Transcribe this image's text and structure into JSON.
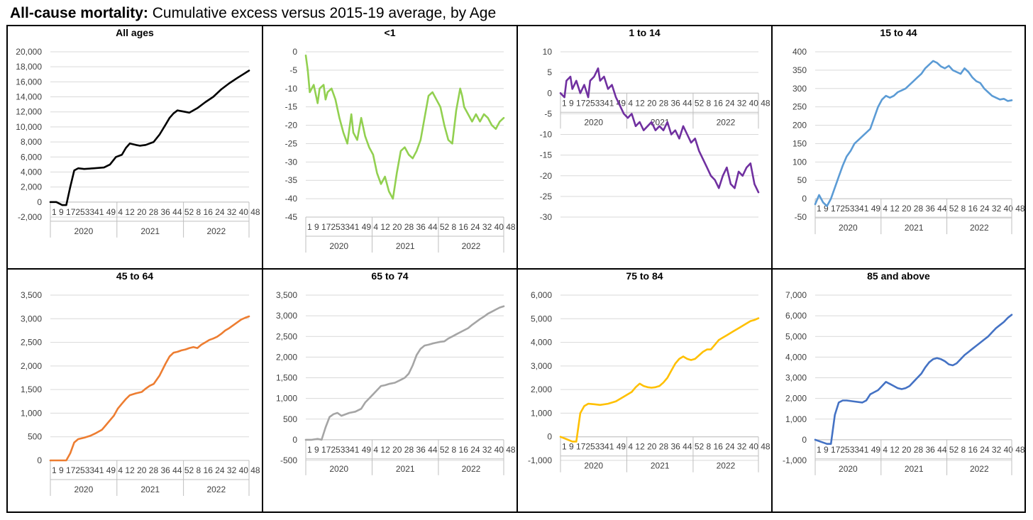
{
  "page": {
    "title_bold": "All-cause mortality:",
    "title_rest": " Cumulative excess versus 2015-19 average, by Age"
  },
  "chart_data": [
    {
      "type": "line",
      "title": "All ages",
      "color": "#000000",
      "ylim": [
        -2000,
        20000
      ],
      "yticks": [
        -2000,
        0,
        2000,
        4000,
        6000,
        8000,
        10000,
        12000,
        14000,
        16000,
        18000,
        20000
      ],
      "week_labels": "1  9  17253341 49  4  12 20 28 36 44 52  8  16 24 32 40 48",
      "years": [
        "2020",
        "2021",
        "2022"
      ],
      "series": [
        {
          "x": [
            0,
            0.03,
            0.06,
            0.08,
            0.1,
            0.12,
            0.14,
            0.17,
            0.22,
            0.27,
            0.3,
            0.33,
            0.36,
            0.38,
            0.4,
            0.43,
            0.45,
            0.48,
            0.52,
            0.55,
            0.58,
            0.6,
            0.62,
            0.64,
            0.66,
            0.7,
            0.74,
            0.78,
            0.82,
            0.86,
            0.9,
            0.94,
            0.97,
            1.0
          ],
          "y": [
            0,
            0,
            -400,
            -400,
            2000,
            4200,
            4500,
            4400,
            4500,
            4600,
            5000,
            6000,
            6300,
            7200,
            7800,
            7600,
            7500,
            7600,
            8000,
            9000,
            10300,
            11200,
            11800,
            12200,
            12100,
            11900,
            12500,
            13300,
            14000,
            15000,
            15800,
            16500,
            17000,
            17500
          ]
        }
      ]
    },
    {
      "type": "line",
      "title": "<1",
      "color": "#92d050",
      "ylim": [
        -45,
        0
      ],
      "yticks": [
        -45,
        -40,
        -35,
        -30,
        -25,
        -20,
        -15,
        -10,
        -5,
        0
      ],
      "week_labels": "1  9  17253341 49  4  12 20 28 36 44 52  8  16 24 32 40 48",
      "years": [
        "2020",
        "2021",
        "2022"
      ],
      "series": [
        {
          "x": [
            0,
            0.01,
            0.02,
            0.04,
            0.06,
            0.07,
            0.09,
            0.1,
            0.11,
            0.13,
            0.15,
            0.17,
            0.19,
            0.21,
            0.23,
            0.24,
            0.26,
            0.28,
            0.3,
            0.32,
            0.34,
            0.36,
            0.38,
            0.4,
            0.42,
            0.44,
            0.46,
            0.48,
            0.5,
            0.52,
            0.54,
            0.56,
            0.58,
            0.6,
            0.62,
            0.64,
            0.66,
            0.68,
            0.7,
            0.72,
            0.74,
            0.76,
            0.78,
            0.79,
            0.8,
            0.82,
            0.84,
            0.86,
            0.88,
            0.9,
            0.92,
            0.94,
            0.96,
            0.98,
            1.0
          ],
          "y": [
            -1,
            -5,
            -11,
            -9,
            -14,
            -10,
            -9,
            -13,
            -11,
            -10,
            -13,
            -18,
            -22,
            -25,
            -17,
            -22,
            -24,
            -18,
            -23,
            -26,
            -28,
            -33,
            -36,
            -34,
            -38,
            -40,
            -33,
            -27,
            -26,
            -28,
            -29,
            -27,
            -24,
            -18,
            -12,
            -11,
            -13,
            -15,
            -20,
            -24,
            -25,
            -16,
            -10,
            -12,
            -15,
            -17,
            -19,
            -17,
            -19,
            -17,
            -18,
            -20,
            -21,
            -19,
            -18
          ]
        }
      ]
    },
    {
      "type": "line",
      "title": "1 to 14",
      "color": "#7030a0",
      "ylim": [
        -30,
        10
      ],
      "yticks": [
        -30,
        -25,
        -20,
        -15,
        -10,
        -5,
        0,
        5,
        10
      ],
      "week_labels": "1  9  17253341 49  4  12 20 28 36 44 52  8  16 24 32 40 48",
      "years": [
        "2020",
        "2021",
        "2022"
      ],
      "series": [
        {
          "x": [
            0,
            0.02,
            0.03,
            0.05,
            0.06,
            0.08,
            0.1,
            0.12,
            0.14,
            0.15,
            0.17,
            0.19,
            0.2,
            0.22,
            0.24,
            0.26,
            0.28,
            0.3,
            0.32,
            0.34,
            0.36,
            0.38,
            0.4,
            0.42,
            0.44,
            0.46,
            0.48,
            0.5,
            0.52,
            0.54,
            0.56,
            0.58,
            0.6,
            0.62,
            0.64,
            0.66,
            0.68,
            0.7,
            0.72,
            0.74,
            0.76,
            0.78,
            0.8,
            0.82,
            0.84,
            0.86,
            0.88,
            0.9,
            0.92,
            0.94,
            0.96,
            0.98,
            1.0
          ],
          "y": [
            0,
            -1,
            3,
            4,
            1,
            3,
            0,
            2,
            -1,
            3,
            4,
            6,
            3,
            4,
            1,
            2,
            -1,
            -3,
            -5,
            -6,
            -5,
            -8,
            -7,
            -9,
            -8,
            -7,
            -9,
            -8,
            -9,
            -7,
            -10,
            -9,
            -11,
            -8,
            -10,
            -12,
            -11,
            -14,
            -16,
            -18,
            -20,
            -21,
            -23,
            -20,
            -18,
            -22,
            -23,
            -19,
            -20,
            -18,
            -17,
            -22,
            -24
          ]
        }
      ]
    },
    {
      "type": "line",
      "title": "15 to 44",
      "color": "#5b9bd5",
      "ylim": [
        -50,
        400
      ],
      "yticks": [
        -50,
        0,
        50,
        100,
        150,
        200,
        250,
        300,
        350,
        400
      ],
      "week_labels": "1  9  17253341 49  4  12 20 28 36 44 52  8  16 24 32 40 48",
      "years": [
        "2020",
        "2021",
        "2022"
      ],
      "series": [
        {
          "x": [
            0,
            0.02,
            0.04,
            0.06,
            0.08,
            0.1,
            0.12,
            0.14,
            0.16,
            0.18,
            0.2,
            0.22,
            0.24,
            0.26,
            0.28,
            0.3,
            0.32,
            0.34,
            0.36,
            0.38,
            0.4,
            0.42,
            0.44,
            0.46,
            0.48,
            0.5,
            0.52,
            0.54,
            0.56,
            0.58,
            0.6,
            0.62,
            0.64,
            0.66,
            0.68,
            0.7,
            0.72,
            0.74,
            0.76,
            0.78,
            0.8,
            0.82,
            0.84,
            0.86,
            0.88,
            0.9,
            0.92,
            0.94,
            0.96,
            0.98,
            1.0
          ],
          "y": [
            -15,
            10,
            -10,
            -20,
            0,
            30,
            60,
            90,
            115,
            130,
            150,
            160,
            170,
            180,
            190,
            220,
            250,
            270,
            280,
            275,
            280,
            290,
            295,
            300,
            310,
            320,
            330,
            340,
            355,
            365,
            375,
            370,
            360,
            355,
            362,
            350,
            345,
            340,
            355,
            345,
            330,
            320,
            315,
            300,
            290,
            280,
            275,
            270,
            272,
            266,
            268
          ]
        }
      ]
    },
    {
      "type": "line",
      "title": "45 to 64",
      "color": "#ed7d31",
      "ylim": [
        0,
        3500
      ],
      "yticks": [
        0,
        500,
        1000,
        1500,
        2000,
        2500,
        3000,
        3500
      ],
      "week_labels": "1  9  17253341 49  4  12 20 28 36 44 52  8  16 24 32 40 48",
      "years": [
        "2020",
        "2021",
        "2022"
      ],
      "series": [
        {
          "x": [
            0,
            0.05,
            0.08,
            0.1,
            0.12,
            0.14,
            0.17,
            0.2,
            0.23,
            0.26,
            0.28,
            0.3,
            0.32,
            0.34,
            0.36,
            0.38,
            0.4,
            0.43,
            0.46,
            0.48,
            0.5,
            0.52,
            0.55,
            0.58,
            0.6,
            0.62,
            0.64,
            0.66,
            0.68,
            0.7,
            0.72,
            0.74,
            0.76,
            0.78,
            0.8,
            0.82,
            0.84,
            0.86,
            0.88,
            0.9,
            0.92,
            0.94,
            0.96,
            0.98,
            1.0
          ],
          "y": [
            0,
            0,
            0,
            150,
            380,
            450,
            480,
            520,
            580,
            650,
            750,
            850,
            950,
            1100,
            1200,
            1300,
            1380,
            1420,
            1450,
            1520,
            1580,
            1620,
            1800,
            2050,
            2200,
            2280,
            2300,
            2330,
            2350,
            2380,
            2400,
            2380,
            2450,
            2500,
            2550,
            2580,
            2620,
            2680,
            2750,
            2800,
            2860,
            2920,
            2980,
            3020,
            3050
          ]
        }
      ]
    },
    {
      "type": "line",
      "title": "65 to 74",
      "color": "#a5a5a5",
      "ylim": [
        -500,
        3500
      ],
      "yticks": [
        -500,
        0,
        500,
        1000,
        1500,
        2000,
        2500,
        3000,
        3500
      ],
      "week_labels": "1  9  17253341 49  4  12 20 28 36 44 52  8  16 24 32 40 48",
      "years": [
        "2020",
        "2021",
        "2022"
      ],
      "series": [
        {
          "x": [
            0,
            0.03,
            0.06,
            0.08,
            0.1,
            0.12,
            0.14,
            0.16,
            0.18,
            0.22,
            0.25,
            0.28,
            0.3,
            0.32,
            0.34,
            0.36,
            0.38,
            0.4,
            0.42,
            0.45,
            0.48,
            0.5,
            0.52,
            0.54,
            0.56,
            0.58,
            0.6,
            0.62,
            0.64,
            0.66,
            0.68,
            0.7,
            0.72,
            0.74,
            0.76,
            0.78,
            0.8,
            0.82,
            0.84,
            0.86,
            0.88,
            0.9,
            0.92,
            0.94,
            0.96,
            0.98,
            1.0
          ],
          "y": [
            0,
            0,
            20,
            0,
            300,
            550,
            620,
            650,
            580,
            650,
            680,
            750,
            900,
            1000,
            1100,
            1200,
            1300,
            1320,
            1350,
            1380,
            1450,
            1500,
            1600,
            1800,
            2050,
            2200,
            2280,
            2300,
            2330,
            2350,
            2370,
            2380,
            2450,
            2500,
            2550,
            2600,
            2650,
            2700,
            2780,
            2850,
            2920,
            2980,
            3050,
            3100,
            3150,
            3200,
            3230
          ]
        }
      ]
    },
    {
      "type": "line",
      "title": "75 to 84",
      "color": "#ffc000",
      "ylim": [
        -1000,
        6000
      ],
      "yticks": [
        -1000,
        0,
        1000,
        2000,
        3000,
        4000,
        5000,
        6000
      ],
      "week_labels": "1  9  17253341 49  4  12 20 28 36 44 52  8  16 24 32 40 48",
      "years": [
        "2020",
        "2021",
        "2022"
      ],
      "series": [
        {
          "x": [
            0,
            0.03,
            0.06,
            0.08,
            0.1,
            0.12,
            0.14,
            0.17,
            0.2,
            0.24,
            0.28,
            0.32,
            0.36,
            0.38,
            0.4,
            0.42,
            0.44,
            0.46,
            0.48,
            0.5,
            0.52,
            0.54,
            0.56,
            0.58,
            0.6,
            0.62,
            0.64,
            0.66,
            0.68,
            0.7,
            0.72,
            0.74,
            0.76,
            0.78,
            0.8,
            0.82,
            0.84,
            0.86,
            0.88,
            0.9,
            0.92,
            0.94,
            0.96,
            0.98,
            1.0
          ],
          "y": [
            0,
            -100,
            -200,
            -200,
            1000,
            1300,
            1400,
            1380,
            1350,
            1400,
            1500,
            1700,
            1900,
            2100,
            2250,
            2150,
            2100,
            2080,
            2100,
            2150,
            2300,
            2500,
            2800,
            3100,
            3300,
            3400,
            3300,
            3250,
            3300,
            3450,
            3600,
            3700,
            3700,
            3900,
            4100,
            4200,
            4300,
            4400,
            4500,
            4600,
            4700,
            4800,
            4900,
            4950,
            5020
          ]
        }
      ]
    },
    {
      "type": "line",
      "title": "85 and above",
      "color": "#4472c4",
      "ylim": [
        -1000,
        7000
      ],
      "yticks": [
        -1000,
        0,
        1000,
        2000,
        3000,
        4000,
        5000,
        6000,
        7000
      ],
      "week_labels": "1  9  17253341 49  4  12 20 28 36 44 52  8  16 24 32 40 48",
      "years": [
        "2020",
        "2021",
        "2022"
      ],
      "series": [
        {
          "x": [
            0,
            0.03,
            0.06,
            0.08,
            0.1,
            0.12,
            0.14,
            0.16,
            0.2,
            0.24,
            0.26,
            0.28,
            0.3,
            0.32,
            0.34,
            0.36,
            0.38,
            0.4,
            0.42,
            0.44,
            0.46,
            0.48,
            0.5,
            0.52,
            0.54,
            0.56,
            0.58,
            0.6,
            0.62,
            0.64,
            0.66,
            0.68,
            0.7,
            0.72,
            0.74,
            0.76,
            0.78,
            0.8,
            0.82,
            0.84,
            0.86,
            0.88,
            0.9,
            0.92,
            0.94,
            0.96,
            0.98,
            1.0
          ],
          "y": [
            0,
            -100,
            -200,
            -200,
            1200,
            1800,
            1900,
            1900,
            1850,
            1800,
            1900,
            2200,
            2300,
            2400,
            2600,
            2800,
            2700,
            2600,
            2500,
            2450,
            2500,
            2600,
            2800,
            3000,
            3200,
            3500,
            3750,
            3900,
            3950,
            3900,
            3800,
            3650,
            3600,
            3700,
            3900,
            4100,
            4250,
            4400,
            4550,
            4700,
            4850,
            5000,
            5200,
            5400,
            5550,
            5700,
            5900,
            6050
          ]
        }
      ]
    }
  ]
}
